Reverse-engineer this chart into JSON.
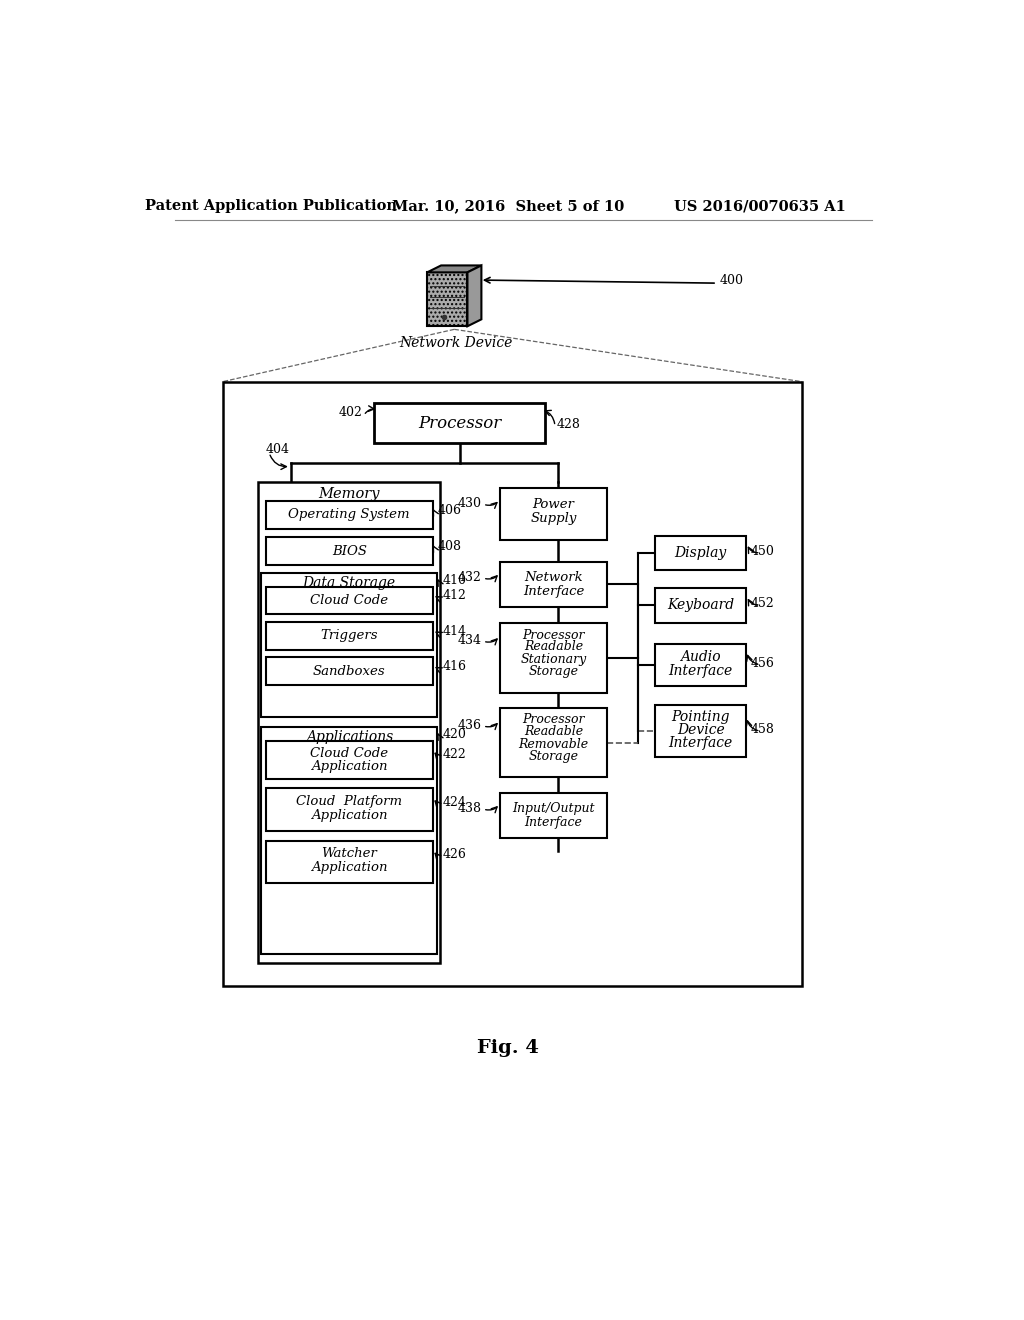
{
  "bg_color": "#ffffff",
  "header_left": "Patent Application Publication",
  "header_mid": "Mar. 10, 2016  Sheet 5 of 10",
  "header_right": "US 2016/0070635 A1",
  "fig_label": "Fig. 4"
}
